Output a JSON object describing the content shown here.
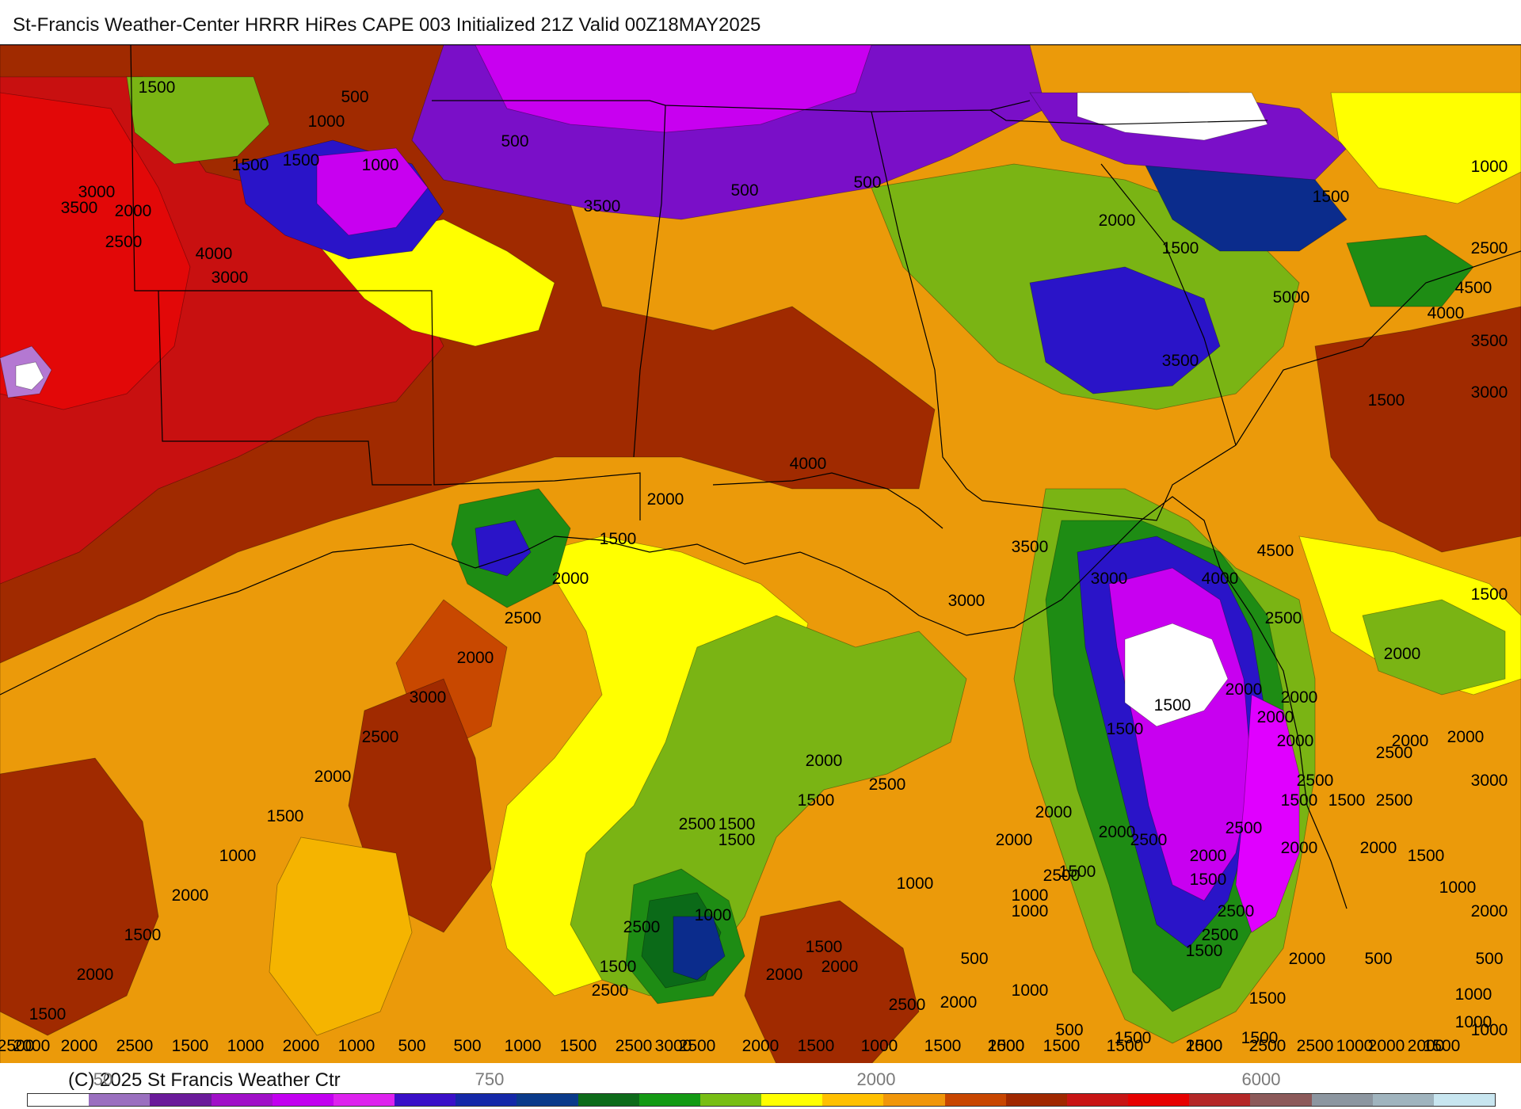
{
  "header": {
    "title": "St-Francis Weather-Center HRRR HiRes CAPE  003 Initialized  21Z Valid 00Z18MAY2025"
  },
  "footer": {
    "copyright": "(C) 2025 St Francis Weather Ctr",
    "colorbar_ticks": [
      "50",
      "750",
      "2000",
      "6000"
    ],
    "colorbar_colors": [
      "#ffffff",
      "#9a6fbf",
      "#6a1a9a",
      "#a010c8",
      "#c200f0",
      "#dd22ee",
      "#3a10c8",
      "#1428a8",
      "#0a3a8a",
      "#0d6b1a",
      "#149a14",
      "#78be14",
      "#ffff00",
      "#ffc000",
      "#f0960a",
      "#c84600",
      "#a02800",
      "#c81414",
      "#e60000",
      "#b42828",
      "#8c5a5a",
      "#8c96a0",
      "#a0b4be",
      "#c8e6f0"
    ]
  },
  "map": {
    "colors": {
      "very_high": "#c81010",
      "high_red": "#e20808",
      "dark_brown": "#a02a00",
      "rust": "#c84800",
      "orange": "#eb9a0a",
      "light_orange": "#f5b400",
      "yellow": "#ffff00",
      "lime": "#7ab414",
      "green": "#1e8c14",
      "dark_green": "#0b6a18",
      "navy": "#0b2c8c",
      "blue": "#2a14c8",
      "purple": "#7a0fc8",
      "magenta": "#c800f0",
      "pink": "#e000ff",
      "lavender": "#b478d2",
      "white": "#ffffff"
    },
    "contour_labels": [
      "1500",
      "500",
      "1000",
      "500",
      "1500",
      "1000",
      "500",
      "1500",
      "500",
      "3000",
      "3500",
      "2000",
      "2500",
      "4000",
      "3000",
      "3500",
      "2000",
      "1500",
      "1000",
      "2500",
      "1500",
      "4500",
      "5000",
      "4000",
      "3000",
      "3500",
      "4000",
      "3500",
      "1500",
      "4500",
      "4000",
      "3000",
      "3500",
      "3000",
      "2500",
      "1500",
      "2000",
      "2000",
      "2000",
      "2500",
      "2500",
      "2500",
      "2000",
      "3000",
      "2000",
      "2500",
      "2000",
      "1500",
      "2500",
      "2000",
      "2500",
      "1500",
      "1500",
      "2000",
      "500",
      "1000",
      "1000",
      "2000",
      "1000",
      "1500",
      "1500",
      "1500",
      "500",
      "1000",
      "500",
      "1000",
      "1500",
      "2000",
      "2500",
      "2000",
      "2000",
      "3000",
      "2500",
      "2500",
      "1500",
      "2500",
      "1500",
      "1000",
      "1000",
      "1000",
      "1500",
      "2000",
      "1500",
      "2000",
      "2500",
      "1500",
      "1500",
      "2500",
      "2000",
      "2000",
      "1500",
      "1500",
      "2000",
      "2000",
      "1500",
      "1500",
      "2500",
      "2000",
      "1500",
      "1000",
      "2000",
      "500",
      "1000",
      "1500",
      "2000",
      "2500",
      "2500",
      "2000",
      "1500",
      "1500",
      "2000",
      "1500",
      "1000",
      "1500",
      "2000",
      "2500",
      "2500",
      "1500",
      "1000",
      "500",
      "500",
      "1000",
      "2000",
      "1000",
      "1500",
      "2500",
      "2000",
      "2000",
      "2500",
      "1500",
      "2000",
      "1500",
      "2000",
      "1000",
      "1500",
      "2000",
      "2500",
      "3000",
      "2000",
      "2500",
      "2000",
      "1500",
      "2000"
    ]
  }
}
